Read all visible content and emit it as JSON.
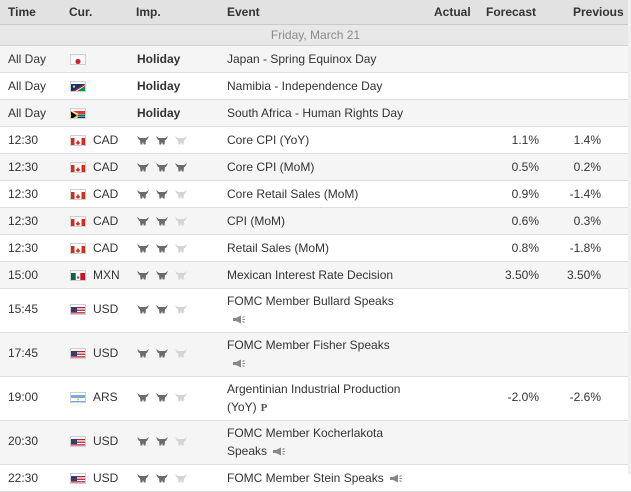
{
  "columns": {
    "time": "Time",
    "cur": "Cur.",
    "imp": "Imp.",
    "event": "Event",
    "actual": "Actual",
    "forecast": "Forecast",
    "previous": "Previous"
  },
  "day_label": "Friday, March 21",
  "colors": {
    "bull_on": "#6b6b6b",
    "bull_off": "#d4d4d4",
    "header_bg": "#e2e2e2",
    "alt_row": "#f5f5f5"
  },
  "rows": [
    {
      "time": "All Day",
      "flag": "japan",
      "cur": "",
      "imp_text": "Holiday",
      "bulls": 0,
      "event": "Japan - Spring Equinox Day",
      "event2": "",
      "speech": false,
      "prelim": "",
      "actual": "",
      "forecast": "",
      "previous": ""
    },
    {
      "time": "All Day",
      "flag": "namibia",
      "cur": "",
      "imp_text": "Holiday",
      "bulls": 0,
      "event": "Namibia - Independence Day",
      "event2": "",
      "speech": false,
      "prelim": "",
      "actual": "",
      "forecast": "",
      "previous": ""
    },
    {
      "time": "All Day",
      "flag": "south-africa",
      "cur": "",
      "imp_text": "Holiday",
      "bulls": 0,
      "event": "South Africa - Human Rights Day",
      "event2": "",
      "speech": false,
      "prelim": "",
      "actual": "",
      "forecast": "",
      "previous": ""
    },
    {
      "time": "12:30",
      "flag": "canada",
      "cur": "CAD",
      "imp_text": "",
      "bulls": 2,
      "event": "Core CPI (YoY)",
      "event2": "",
      "speech": false,
      "prelim": "",
      "actual": "",
      "forecast": "1.1%",
      "previous": "1.4%"
    },
    {
      "time": "12:30",
      "flag": "canada",
      "cur": "CAD",
      "imp_text": "",
      "bulls": 3,
      "event": "Core CPI (MoM)",
      "event2": "",
      "speech": false,
      "prelim": "",
      "actual": "",
      "forecast": "0.5%",
      "previous": "0.2%"
    },
    {
      "time": "12:30",
      "flag": "canada",
      "cur": "CAD",
      "imp_text": "",
      "bulls": 2,
      "event": "Core Retail Sales (MoM)",
      "event2": "",
      "speech": false,
      "prelim": "",
      "actual": "",
      "forecast": "0.9%",
      "previous": "-1.4%"
    },
    {
      "time": "12:30",
      "flag": "canada",
      "cur": "CAD",
      "imp_text": "",
      "bulls": 2,
      "event": "CPI (MoM)",
      "event2": "",
      "speech": false,
      "prelim": "",
      "actual": "",
      "forecast": "0.6%",
      "previous": "0.3%"
    },
    {
      "time": "12:30",
      "flag": "canada",
      "cur": "CAD",
      "imp_text": "",
      "bulls": 2,
      "event": "Retail Sales (MoM)",
      "event2": "",
      "speech": false,
      "prelim": "",
      "actual": "",
      "forecast": "0.8%",
      "previous": "-1.8%"
    },
    {
      "time": "15:00",
      "flag": "mexico",
      "cur": "MXN",
      "imp_text": "",
      "bulls": 2,
      "event": "Mexican Interest Rate Decision",
      "event2": "",
      "speech": false,
      "prelim": "",
      "actual": "",
      "forecast": "3.50%",
      "previous": "3.50%"
    },
    {
      "time": "15:45",
      "flag": "usa",
      "cur": "USD",
      "imp_text": "",
      "bulls": 2,
      "event": "FOMC Member Bullard Speaks",
      "event2": "",
      "speech": true,
      "prelim": "",
      "actual": "",
      "forecast": "",
      "previous": ""
    },
    {
      "time": "17:45",
      "flag": "usa",
      "cur": "USD",
      "imp_text": "",
      "bulls": 2,
      "event": "FOMC Member Fisher Speaks",
      "event2": "",
      "speech": true,
      "prelim": "",
      "actual": "",
      "forecast": "",
      "previous": ""
    },
    {
      "time": "19:00",
      "flag": "argentina",
      "cur": "ARS",
      "imp_text": "",
      "bulls": 2,
      "event": "Argentinian Industrial Production",
      "event2": "(YoY)",
      "speech": false,
      "prelim": "P",
      "actual": "",
      "forecast": "-2.0%",
      "previous": "-2.6%"
    },
    {
      "time": "20:30",
      "flag": "usa",
      "cur": "USD",
      "imp_text": "",
      "bulls": 2,
      "event": "FOMC Member Kocherlakota",
      "event2": "Speaks",
      "speech": true,
      "prelim": "",
      "actual": "",
      "forecast": "",
      "previous": ""
    },
    {
      "time": "22:30",
      "flag": "usa",
      "cur": "USD",
      "imp_text": "",
      "bulls": 2,
      "event": "FOMC Member Stein Speaks",
      "event2": "",
      "speech": true,
      "prelim": "",
      "actual": "",
      "forecast": "",
      "previous": ""
    }
  ]
}
